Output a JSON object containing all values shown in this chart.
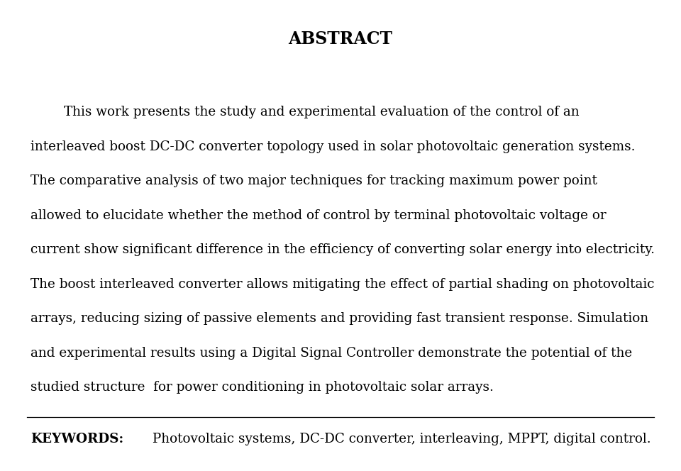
{
  "title": "ABSTRACT",
  "title_fontsize": 17,
  "body_fontsize": 13.2,
  "keywords_fontsize": 13.2,
  "background_color": "#ffffff",
  "text_color": "#000000",
  "paragraph_lines": [
    "        This work presents the study and experimental evaluation of the control of an",
    "interleaved boost DC-DC converter topology used in solar photovoltaic generation systems.",
    "The comparative analysis of two major techniques for tracking maximum power point",
    "allowed to elucidate whether the method of control by terminal photovoltaic voltage or",
    "current show significant difference in the efficiency of converting solar energy into electricity.",
    "The boost interleaved converter allows mitigating the effect of partial shading on photovoltaic",
    "arrays, reducing sizing of passive elements and providing fast transient response. Simulation",
    "and experimental results using a Digital Signal Controller demonstrate the potential of the",
    "studied structure  for power conditioning in photovoltaic solar arrays."
  ],
  "keywords_label": "KEYWORDS:",
  "keywords_text": " Photovoltaic systems, DC-DC converter, interleaving, MPPT, digital control.",
  "figsize": [
    9.6,
    6.64
  ],
  "dpi": 100
}
